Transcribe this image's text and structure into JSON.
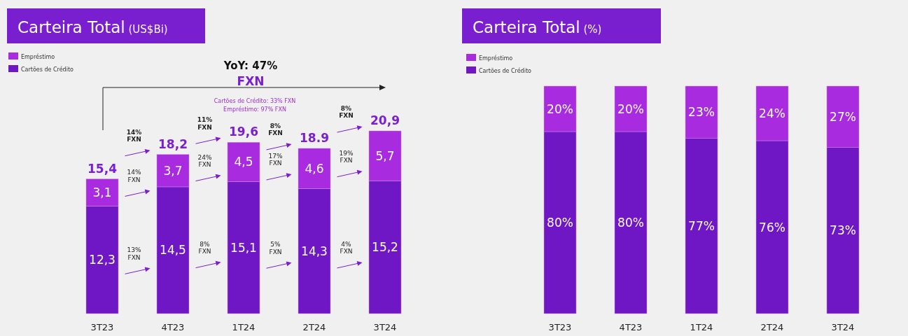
{
  "chart_data": [
    {
      "type": "bar",
      "title": "Carteira Total (US$Bi)",
      "stacked": true,
      "legend": "top left",
      "categories": [
        "3T23",
        "4T23",
        "1T24",
        "2T24",
        "3T24"
      ],
      "series": [
        {
          "name": "Cartões de Crédito",
          "color": "#6f17c4",
          "values": [
            12.3,
            14.5,
            15.1,
            14.3,
            15.2
          ],
          "value_labels": [
            "12,3",
            "14,5",
            "15,1",
            "14,3",
            "15,2"
          ]
        },
        {
          "name": "Empréstimo",
          "color": "#a92be0",
          "values": [
            3.1,
            3.7,
            4.5,
            4.6,
            5.7
          ],
          "value_labels": [
            "3,1",
            "3,7",
            "4,5",
            "4,6",
            "5,7"
          ]
        }
      ],
      "totals": [
        "15,4",
        "18,2",
        "19,6",
        "18.9",
        "20,9"
      ],
      "annotations": [
        "YoY: 47%",
        "FXN",
        "Cartões de Crédito: 33% FXN",
        "Empréstimo: 97% FXN",
        "14%\nFXN",
        "14%\nFXN",
        "13%\nFXN",
        "11%\nFXN",
        "24%\nFXN",
        "8%\nFXN",
        "8%\nFXN",
        "17%\nFXN",
        "5%\nFXN",
        "8%\nFXN",
        "19%\nFXN",
        "4%\nFXN"
      ]
    },
    {
      "type": "bar",
      "title": "Carteira Total (%)",
      "stacked": true,
      "legend": "top left",
      "categories": [
        "3T23",
        "4T23",
        "1T24",
        "2T24",
        "3T24"
      ],
      "series": [
        {
          "name": "Cartões de Crédito",
          "color": "#6f17c4",
          "values": [
            80,
            80,
            77,
            76,
            73
          ],
          "value_labels": [
            "80%",
            "80%",
            "77%",
            "76%",
            "73%"
          ]
        },
        {
          "name": "Empréstimo",
          "color": "#a92be0",
          "values": [
            20,
            20,
            23,
            24,
            27
          ],
          "value_labels": [
            "20%",
            "20%",
            "23%",
            "24%",
            "27%"
          ]
        }
      ]
    }
  ]
}
